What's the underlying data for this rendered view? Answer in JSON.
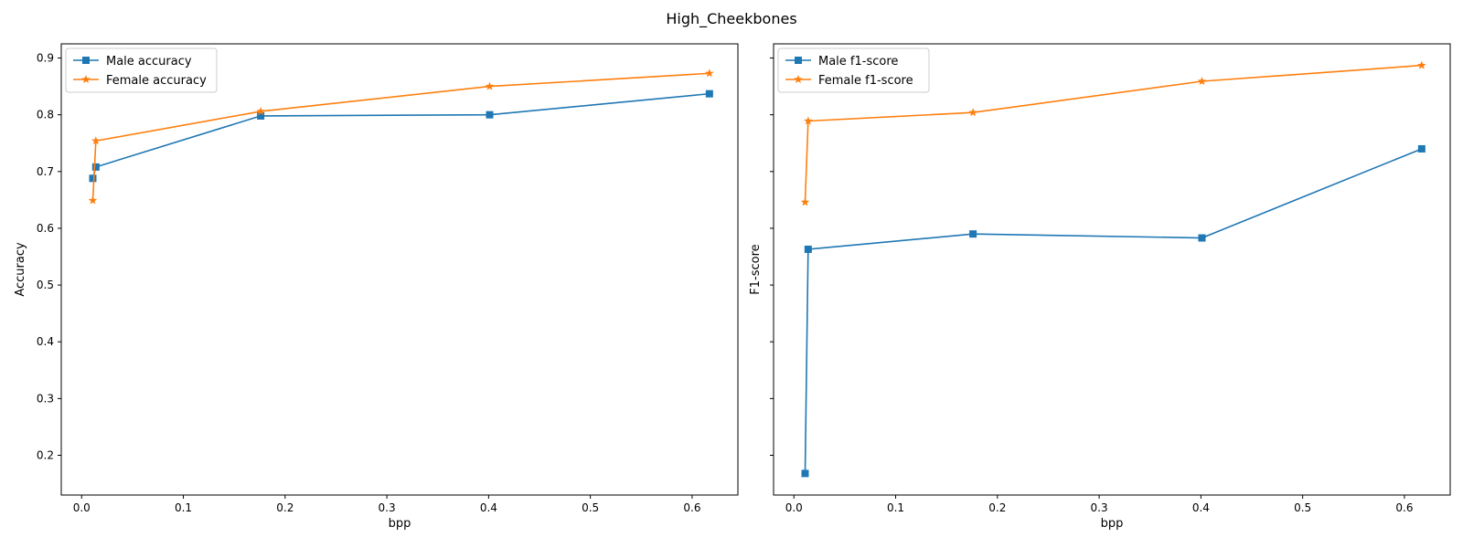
{
  "suptitle": "High_Cheekbones",
  "colors": {
    "male": "#1f77b4",
    "female": "#ff7f0e"
  },
  "chart_data": [
    {
      "type": "line",
      "xlabel": "bpp",
      "ylabel": "Accuracy",
      "xlim": [
        -0.02,
        0.645
      ],
      "ylim": [
        0.13,
        0.925
      ],
      "xticks": [
        0.0,
        0.1,
        0.2,
        0.3,
        0.4,
        0.5,
        0.6
      ],
      "xtick_labels": [
        "0.0",
        "0.1",
        "0.2",
        "0.3",
        "0.4",
        "0.5",
        "0.6"
      ],
      "yticks": [
        0.2,
        0.3,
        0.4,
        0.5,
        0.6,
        0.7,
        0.8,
        0.9
      ],
      "ytick_labels": [
        "0.2",
        "0.3",
        "0.4",
        "0.5",
        "0.6",
        "0.7",
        "0.8",
        "0.9"
      ],
      "legend_position": "upper left",
      "series": [
        {
          "name": "Male accuracy",
          "marker": "square",
          "color": "#1f77b4",
          "x": [
            0.011,
            0.014,
            0.176,
            0.401,
            0.617
          ],
          "y": [
            0.688,
            0.708,
            0.798,
            0.8,
            0.837
          ]
        },
        {
          "name": "Female accuracy",
          "marker": "star",
          "color": "#ff7f0e",
          "x": [
            0.011,
            0.014,
            0.176,
            0.401,
            0.617
          ],
          "y": [
            0.649,
            0.754,
            0.806,
            0.85,
            0.873
          ]
        }
      ]
    },
    {
      "type": "line",
      "xlabel": "bpp",
      "ylabel": "F1-score",
      "xlim": [
        -0.02,
        0.645
      ],
      "ylim": [
        0.13,
        0.925
      ],
      "xticks": [
        0.0,
        0.1,
        0.2,
        0.3,
        0.4,
        0.5,
        0.6
      ],
      "xtick_labels": [
        "0.0",
        "0.1",
        "0.2",
        "0.3",
        "0.4",
        "0.5",
        "0.6"
      ],
      "yticks": [
        0.2,
        0.3,
        0.4,
        0.5,
        0.6,
        0.7,
        0.8,
        0.9
      ],
      "ytick_labels": [],
      "legend_position": "upper left",
      "series": [
        {
          "name": "Male f1-score",
          "marker": "square",
          "color": "#1f77b4",
          "x": [
            0.011,
            0.014,
            0.176,
            0.401,
            0.617
          ],
          "y": [
            0.168,
            0.563,
            0.59,
            0.583,
            0.74
          ]
        },
        {
          "name": "Female f1-score",
          "marker": "star",
          "color": "#ff7f0e",
          "x": [
            0.011,
            0.014,
            0.176,
            0.401,
            0.617
          ],
          "y": [
            0.646,
            0.789,
            0.804,
            0.859,
            0.887
          ]
        }
      ]
    }
  ]
}
